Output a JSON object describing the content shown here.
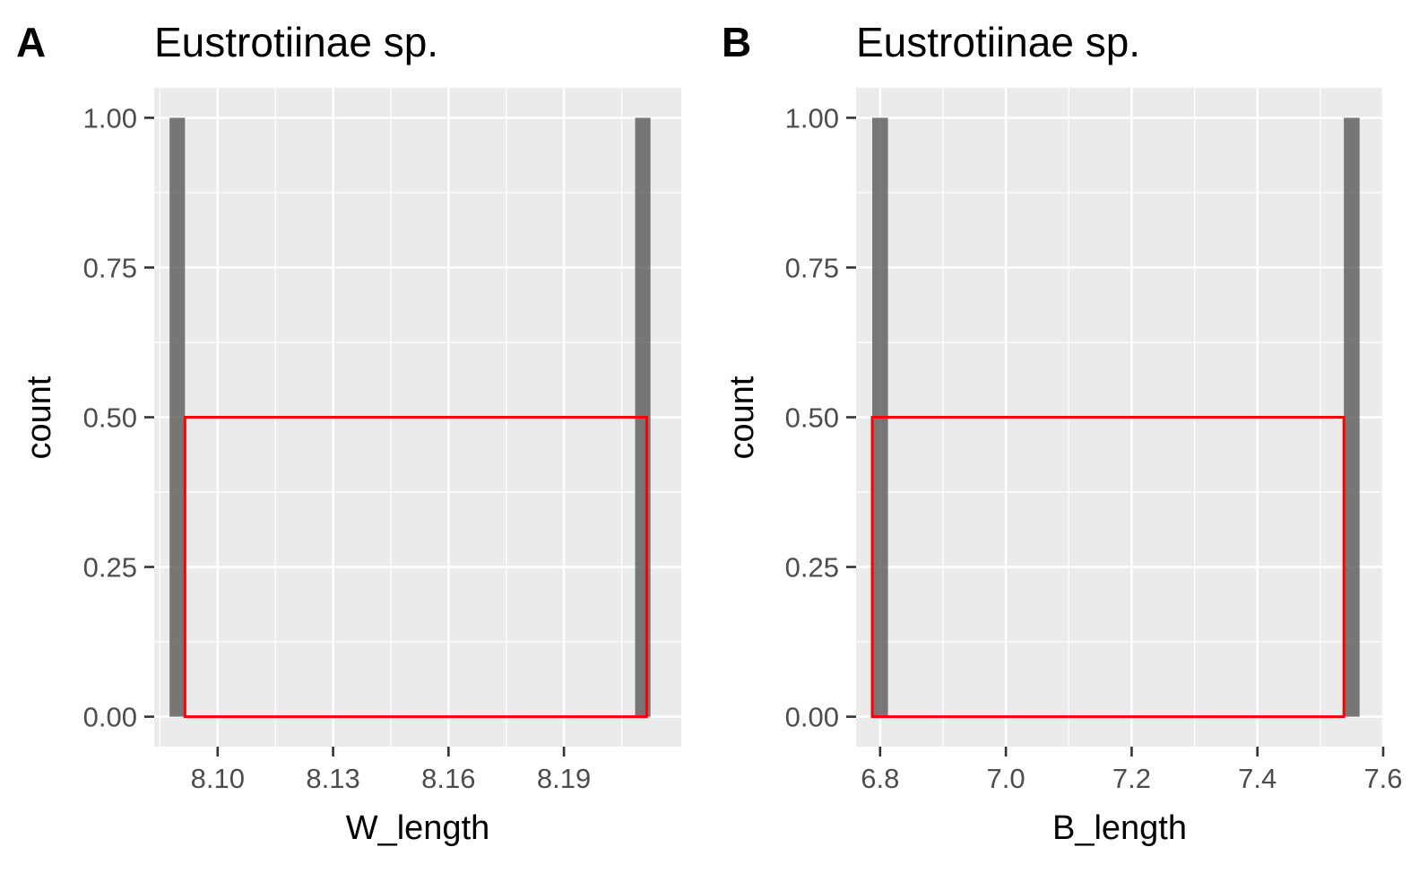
{
  "chart_data": [
    {
      "panel_tag": "A",
      "type": "bar",
      "title": "Eustrotiinae sp.",
      "xlabel": "W_length",
      "ylabel": "count",
      "x_ticks": [
        "8.10",
        "8.13",
        "8.16",
        "8.19"
      ],
      "y_ticks": [
        "0.00",
        "0.25",
        "0.50",
        "0.75",
        "1.00"
      ],
      "x_tick_values": [
        8.1,
        8.13,
        8.16,
        8.19
      ],
      "y_tick_values": [
        0,
        0.25,
        0.5,
        0.75,
        1.0
      ],
      "xlim": [
        8.0835,
        8.2205
      ],
      "ylim": [
        -0.05,
        1.05
      ],
      "grid": true,
      "bars": [
        {
          "x": 8.0895,
          "count": 1
        },
        {
          "x": 8.2105,
          "count": 1
        }
      ],
      "bin_width": 0.004,
      "overlay_rect": {
        "x_range": [
          8.0915,
          8.2115
        ],
        "y_range": [
          0,
          0.5
        ],
        "color": "#ff0000"
      },
      "colors": {
        "panel_bg": "#ebebeb",
        "grid": "#ffffff",
        "bar": "#595959"
      }
    },
    {
      "panel_tag": "B",
      "type": "bar",
      "title": "Eustrotiinae sp.",
      "xlabel": "B_length",
      "ylabel": "count",
      "x_ticks": [
        "6.8",
        "7.0",
        "7.2",
        "7.4",
        "7.6"
      ],
      "y_ticks": [
        "0.00",
        "0.25",
        "0.50",
        "0.75",
        "1.00"
      ],
      "x_tick_values": [
        6.8,
        7.0,
        7.2,
        7.4,
        7.6
      ],
      "y_tick_values": [
        0,
        0.25,
        0.5,
        0.75,
        1.0
      ],
      "xlim": [
        6.7618,
        7.6
      ],
      "ylim": [
        -0.05,
        1.05
      ],
      "grid": true,
      "bars": [
        {
          "x": 6.8,
          "count": 1
        },
        {
          "x": 7.55,
          "count": 1
        }
      ],
      "bin_width": 0.025,
      "overlay_rect": {
        "x_range": [
          6.7875,
          7.5375
        ],
        "y_range": [
          0,
          0.5
        ],
        "color": "#ff0000"
      },
      "colors": {
        "panel_bg": "#ebebeb",
        "grid": "#ffffff",
        "bar": "#595959"
      }
    }
  ]
}
